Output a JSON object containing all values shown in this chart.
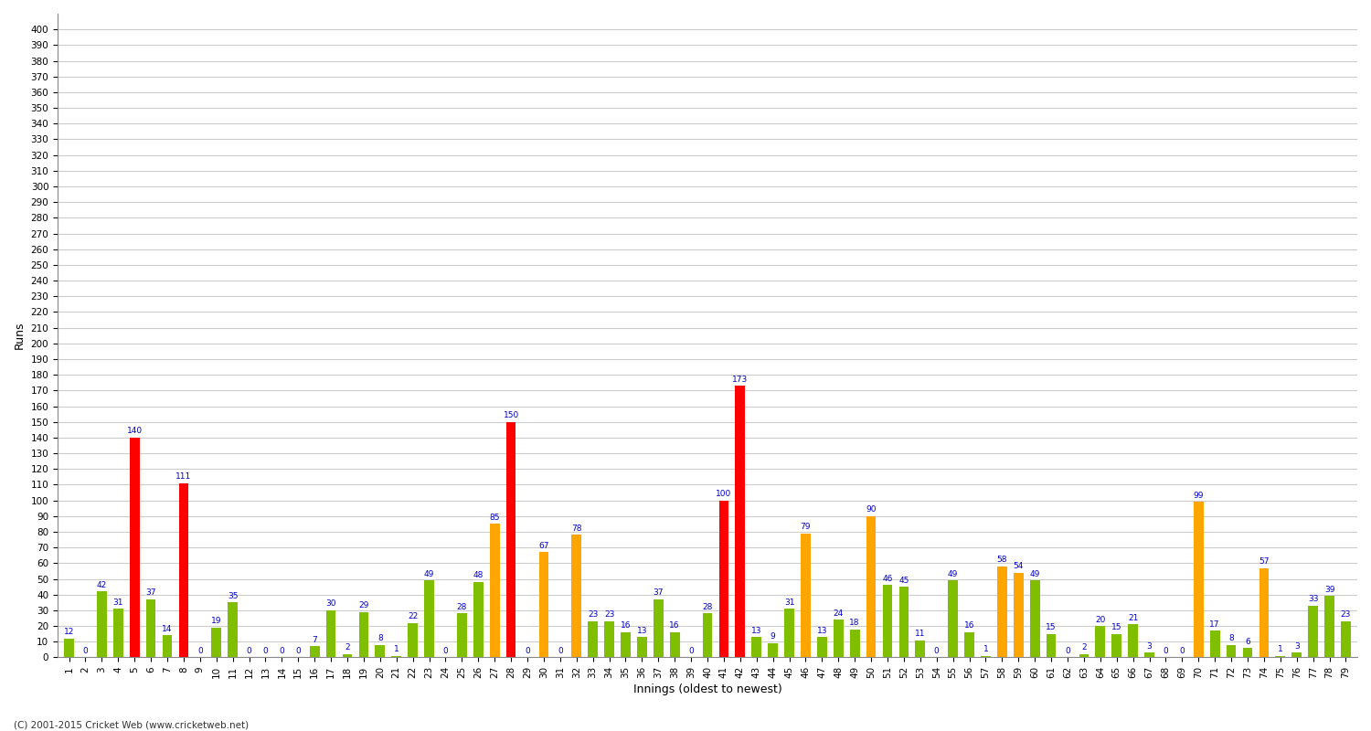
{
  "title": "",
  "ylabel": "Runs",
  "xlabel": "Innings (oldest to newest)",
  "footer": "(C) 2001-2015 Cricket Web (www.cricketweb.net)",
  "ylim": [
    0,
    410
  ],
  "yticks": [
    0,
    10,
    20,
    30,
    40,
    50,
    60,
    70,
    80,
    90,
    100,
    110,
    120,
    130,
    140,
    150,
    160,
    170,
    180,
    190,
    200,
    210,
    220,
    230,
    240,
    250,
    260,
    270,
    280,
    290,
    300,
    310,
    320,
    330,
    340,
    350,
    360,
    370,
    380,
    390,
    400
  ],
  "innings": [
    {
      "num": 1,
      "runs": 12,
      "color": "green"
    },
    {
      "num": 2,
      "runs": 0,
      "color": "green"
    },
    {
      "num": 3,
      "runs": 42,
      "color": "green"
    },
    {
      "num": 4,
      "runs": 31,
      "color": "green"
    },
    {
      "num": 5,
      "runs": 140,
      "color": "red"
    },
    {
      "num": 6,
      "runs": 37,
      "color": "green"
    },
    {
      "num": 7,
      "runs": 14,
      "color": "green"
    },
    {
      "num": 8,
      "runs": 111,
      "color": "red"
    },
    {
      "num": 9,
      "runs": 0,
      "color": "green"
    },
    {
      "num": 10,
      "runs": 19,
      "color": "green"
    },
    {
      "num": 11,
      "runs": 35,
      "color": "green"
    },
    {
      "num": 12,
      "runs": 0,
      "color": "green"
    },
    {
      "num": 13,
      "runs": 0,
      "color": "green"
    },
    {
      "num": 14,
      "runs": 0,
      "color": "green"
    },
    {
      "num": 15,
      "runs": 0,
      "color": "green"
    },
    {
      "num": 16,
      "runs": 7,
      "color": "green"
    },
    {
      "num": 17,
      "runs": 30,
      "color": "green"
    },
    {
      "num": 18,
      "runs": 2,
      "color": "green"
    },
    {
      "num": 19,
      "runs": 29,
      "color": "green"
    },
    {
      "num": 20,
      "runs": 8,
      "color": "green"
    },
    {
      "num": 21,
      "runs": 1,
      "color": "green"
    },
    {
      "num": 22,
      "runs": 22,
      "color": "green"
    },
    {
      "num": 23,
      "runs": 49,
      "color": "green"
    },
    {
      "num": 24,
      "runs": 0,
      "color": "green"
    },
    {
      "num": 25,
      "runs": 28,
      "color": "green"
    },
    {
      "num": 26,
      "runs": 48,
      "color": "green"
    },
    {
      "num": 27,
      "runs": 85,
      "color": "orange"
    },
    {
      "num": 28,
      "runs": 150,
      "color": "red"
    },
    {
      "num": 29,
      "runs": 0,
      "color": "green"
    },
    {
      "num": 30,
      "runs": 67,
      "color": "orange"
    },
    {
      "num": 31,
      "runs": 0,
      "color": "green"
    },
    {
      "num": 32,
      "runs": 78,
      "color": "orange"
    },
    {
      "num": 33,
      "runs": 23,
      "color": "green"
    },
    {
      "num": 34,
      "runs": 23,
      "color": "green"
    },
    {
      "num": 35,
      "runs": 16,
      "color": "green"
    },
    {
      "num": 36,
      "runs": 13,
      "color": "green"
    },
    {
      "num": 37,
      "runs": 37,
      "color": "green"
    },
    {
      "num": 38,
      "runs": 16,
      "color": "green"
    },
    {
      "num": 39,
      "runs": 0,
      "color": "green"
    },
    {
      "num": 40,
      "runs": 28,
      "color": "green"
    },
    {
      "num": 41,
      "runs": 100,
      "color": "red"
    },
    {
      "num": 42,
      "runs": 173,
      "color": "red"
    },
    {
      "num": 43,
      "runs": 13,
      "color": "green"
    },
    {
      "num": 44,
      "runs": 9,
      "color": "green"
    },
    {
      "num": 45,
      "runs": 31,
      "color": "green"
    },
    {
      "num": 46,
      "runs": 79,
      "color": "orange"
    },
    {
      "num": 47,
      "runs": 13,
      "color": "green"
    },
    {
      "num": 48,
      "runs": 24,
      "color": "green"
    },
    {
      "num": 49,
      "runs": 18,
      "color": "green"
    },
    {
      "num": 50,
      "runs": 90,
      "color": "orange"
    },
    {
      "num": 51,
      "runs": 46,
      "color": "green"
    },
    {
      "num": 52,
      "runs": 45,
      "color": "green"
    },
    {
      "num": 53,
      "runs": 11,
      "color": "green"
    },
    {
      "num": 54,
      "runs": 0,
      "color": "green"
    },
    {
      "num": 55,
      "runs": 49,
      "color": "green"
    },
    {
      "num": 56,
      "runs": 16,
      "color": "green"
    },
    {
      "num": 57,
      "runs": 1,
      "color": "green"
    },
    {
      "num": 58,
      "runs": 58,
      "color": "orange"
    },
    {
      "num": 59,
      "runs": 54,
      "color": "orange"
    },
    {
      "num": 60,
      "runs": 49,
      "color": "green"
    },
    {
      "num": 61,
      "runs": 15,
      "color": "green"
    },
    {
      "num": 62,
      "runs": 0,
      "color": "green"
    },
    {
      "num": 63,
      "runs": 2,
      "color": "green"
    },
    {
      "num": 64,
      "runs": 20,
      "color": "green"
    },
    {
      "num": 65,
      "runs": 15,
      "color": "green"
    },
    {
      "num": 66,
      "runs": 21,
      "color": "green"
    },
    {
      "num": 67,
      "runs": 3,
      "color": "green"
    },
    {
      "num": 68,
      "runs": 0,
      "color": "green"
    },
    {
      "num": 69,
      "runs": 0,
      "color": "green"
    },
    {
      "num": 70,
      "runs": 99,
      "color": "orange"
    },
    {
      "num": 71,
      "runs": 17,
      "color": "green"
    },
    {
      "num": 72,
      "runs": 8,
      "color": "green"
    },
    {
      "num": 73,
      "runs": 6,
      "color": "green"
    },
    {
      "num": 74,
      "runs": 57,
      "color": "orange"
    },
    {
      "num": 75,
      "runs": 1,
      "color": "green"
    },
    {
      "num": 76,
      "runs": 3,
      "color": "green"
    },
    {
      "num": 77,
      "runs": 33,
      "color": "green"
    },
    {
      "num": 78,
      "runs": 39,
      "color": "green"
    },
    {
      "num": 79,
      "runs": 23,
      "color": "green"
    }
  ],
  "color_map": {
    "red": "#FF0000",
    "orange": "#FFA500",
    "green": "#7FBF00"
  },
  "bar_width": 0.6,
  "bg_color": "#FFFFFF",
  "grid_color": "#CCCCCC",
  "label_color": "#0000CC",
  "label_fontsize": 6.5,
  "tick_fontsize": 7.5,
  "axis_label_fontsize": 9,
  "footer_fontsize": 7.5
}
